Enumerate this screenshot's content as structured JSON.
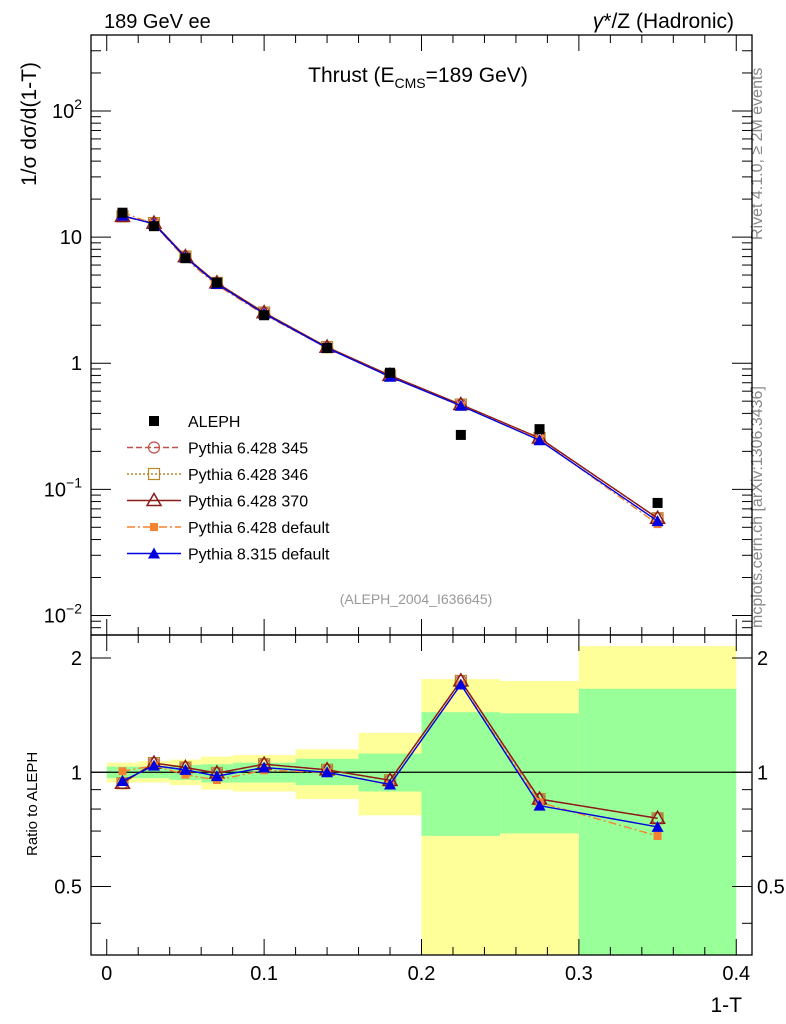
{
  "header": {
    "left": "189 GeV ee",
    "right_gamma": "γ",
    "right_rest": "*/Z (Hadronic)"
  },
  "side_labels": {
    "rivet": "Rivet 4.1.0, ≥ 2M events",
    "mcplots": "mcplots.cern.ch [arXiv:1306.3436]"
  },
  "chart_data": {
    "type": "line",
    "title_prefix": "Thrust (E",
    "title_sub": "CMS",
    "title_suffix": "=189 GeV)",
    "analysis_tag": "(ALEPH_2004_I636645)",
    "xlabel": "1-T",
    "ylabel": "1/σ  dσ/d(1-T)",
    "ratio_ylabel": "Ratio to ALEPH",
    "xlim": [
      -0.01,
      0.41
    ],
    "ylim": [
      0.007,
      400
    ],
    "yscale": "log",
    "ratio_ylim": [
      0.33,
      2.3
    ],
    "ratio_yscale": "log",
    "x_ticks": [
      "0",
      "0.1",
      "0.2",
      "0.3",
      "0.4"
    ],
    "x_tick_values": [
      0,
      0.1,
      0.2,
      0.3,
      0.4
    ],
    "y_ticks": [
      {
        "value": 0.01,
        "base": "10",
        "exp": "−2"
      },
      {
        "value": 0.1,
        "base": "10",
        "exp": "−1"
      },
      {
        "value": 1,
        "base": "1",
        "exp": ""
      },
      {
        "value": 10,
        "base": "10",
        "exp": ""
      },
      {
        "value": 100,
        "base": "10",
        "exp": "2"
      }
    ],
    "ratio_ticks": [
      "0.5",
      "1",
      "2"
    ],
    "ratio_tick_values": [
      0.5,
      1,
      2
    ],
    "bins": [
      {
        "lo": 0.0,
        "hi": 0.02
      },
      {
        "lo": 0.02,
        "hi": 0.04
      },
      {
        "lo": 0.04,
        "hi": 0.06
      },
      {
        "lo": 0.06,
        "hi": 0.08
      },
      {
        "lo": 0.08,
        "hi": 0.12
      },
      {
        "lo": 0.12,
        "hi": 0.16
      },
      {
        "lo": 0.16,
        "hi": 0.2
      },
      {
        "lo": 0.2,
        "hi": 0.25
      },
      {
        "lo": 0.25,
        "hi": 0.3
      },
      {
        "lo": 0.3,
        "hi": 0.4
      }
    ],
    "x": [
      0.01,
      0.03,
      0.05,
      0.07,
      0.1,
      0.14,
      0.18,
      0.225,
      0.275,
      0.35
    ],
    "data": {
      "name": "ALEPH",
      "values": [
        15.6,
        12.2,
        6.8,
        4.35,
        2.4,
        1.32,
        0.84,
        0.27,
        0.3,
        0.078
      ]
    },
    "series": [
      {
        "name": "Pythia 6.428 345",
        "color": "#c0504d",
        "style": "dashed",
        "marker": "open-circle",
        "values": [
          14.6,
          12.9,
          7.0,
          4.33,
          2.52,
          1.34,
          0.8,
          0.47,
          0.255,
          0.059
        ]
      },
      {
        "name": "Pythia 6.428 346",
        "color": "#b8862b",
        "style": "dotted",
        "marker": "open-square",
        "values": [
          14.6,
          12.9,
          7.0,
          4.33,
          2.52,
          1.34,
          0.8,
          0.47,
          0.255,
          0.059
        ]
      },
      {
        "name": "Pythia 6.428 370",
        "color": "#8b1a1a",
        "style": "solid",
        "marker": "open-triangle",
        "values": [
          14.6,
          12.9,
          7.0,
          4.33,
          2.52,
          1.34,
          0.8,
          0.47,
          0.255,
          0.059
        ]
      },
      {
        "name": "Pythia 6.428 default",
        "color": "#f58231",
        "style": "dashdot",
        "marker": "filled-square",
        "values": [
          15.7,
          12.7,
          6.7,
          4.15,
          2.43,
          1.32,
          0.78,
          0.46,
          0.25,
          0.053
        ]
      },
      {
        "name": "Pythia 8.315 default",
        "color": "#0000e0",
        "style": "solid",
        "marker": "filled-triangle",
        "values": [
          14.8,
          12.7,
          6.9,
          4.25,
          2.47,
          1.32,
          0.78,
          0.46,
          0.245,
          0.056
        ]
      }
    ],
    "ratio_bands": [
      {
        "green": [
          0.965,
          1.035
        ],
        "yellow": [
          0.94,
          1.06
        ]
      },
      {
        "green": [
          0.965,
          1.035
        ],
        "yellow": [
          0.94,
          1.07
        ]
      },
      {
        "green": [
          0.955,
          1.045
        ],
        "yellow": [
          0.925,
          1.08
        ]
      },
      {
        "green": [
          0.94,
          1.05
        ],
        "yellow": [
          0.9,
          1.1
        ]
      },
      {
        "green": [
          0.94,
          1.06
        ],
        "yellow": [
          0.89,
          1.11
        ]
      },
      {
        "green": [
          0.925,
          1.085
        ],
        "yellow": [
          0.85,
          1.15
        ]
      },
      {
        "green": [
          0.89,
          1.12
        ],
        "yellow": [
          0.77,
          1.27
        ]
      },
      {
        "green": [
          0.68,
          1.44
        ],
        "yellow": [
          0.33,
          1.76
        ]
      },
      {
        "green": [
          0.69,
          1.43
        ],
        "yellow": [
          0.33,
          1.74
        ]
      },
      {
        "green": [
          0.33,
          1.66
        ],
        "yellow": [
          0.33,
          2.15
        ]
      }
    ]
  }
}
